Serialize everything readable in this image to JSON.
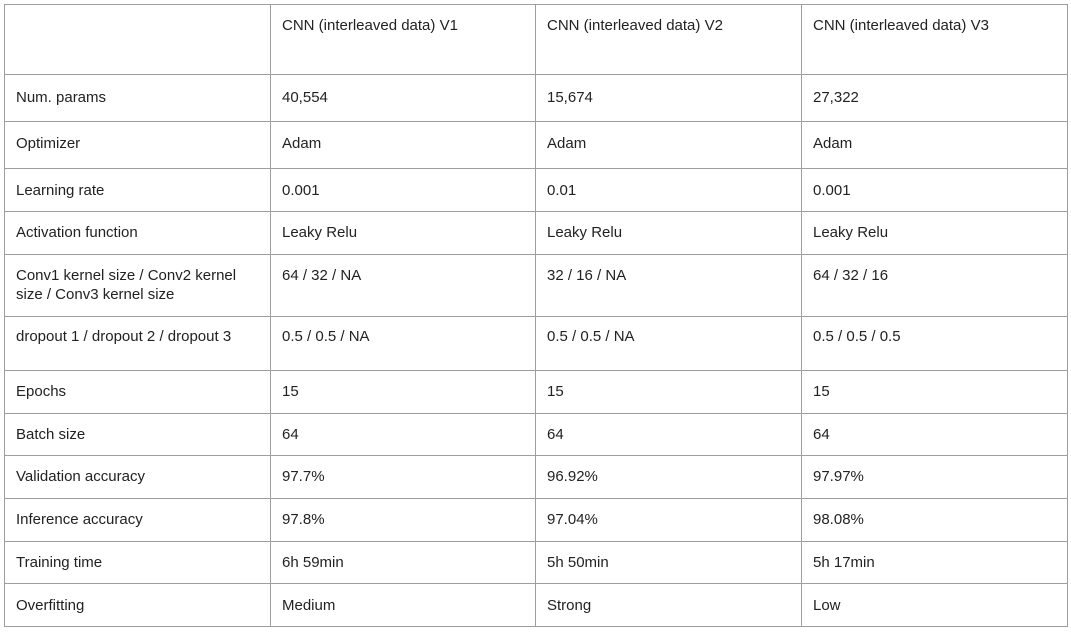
{
  "table": {
    "columns": [
      "",
      "CNN (interleaved data) V1",
      "CNN (interleaved data) V2",
      "CNN (interleaved data) V3"
    ],
    "rows": [
      {
        "label": "Num. params",
        "values": [
          "40,554",
          "15,674",
          "27,322"
        ]
      },
      {
        "label": "Optimizer",
        "values": [
          "Adam",
          "Adam",
          "Adam"
        ]
      },
      {
        "label": "Learning rate",
        "values": [
          "0.001",
          "0.01",
          "0.001"
        ]
      },
      {
        "label": "Activation function",
        "values": [
          "Leaky Relu",
          "Leaky Relu",
          "Leaky Relu"
        ]
      },
      {
        "label": "Conv1 kernel size / Conv2 kernel size / Conv3 kernel size",
        "values": [
          "64 / 32 / NA",
          "32 / 16 / NA",
          "64 / 32 / 16"
        ]
      },
      {
        "label": "dropout 1 / dropout 2 / dropout 3",
        "values": [
          "0.5 / 0.5 / NA",
          "0.5 / 0.5 / NA",
          "0.5 / 0.5 / 0.5"
        ]
      },
      {
        "label": "Epochs",
        "values": [
          "15",
          "15",
          "15"
        ]
      },
      {
        "label": "Batch size",
        "values": [
          "64",
          "64",
          "64"
        ]
      },
      {
        "label": "Validation accuracy",
        "values": [
          "97.7%",
          "96.92%",
          "97.97%"
        ]
      },
      {
        "label": "Inference accuracy",
        "values": [
          "97.8%",
          "97.04%",
          "98.08%"
        ]
      },
      {
        "label": "Training time",
        "values": [
          "6h 59min",
          "5h 50min",
          "5h 17min"
        ]
      },
      {
        "label": "Overfitting",
        "values": [
          "Medium",
          "Strong",
          "Low"
        ]
      }
    ]
  }
}
